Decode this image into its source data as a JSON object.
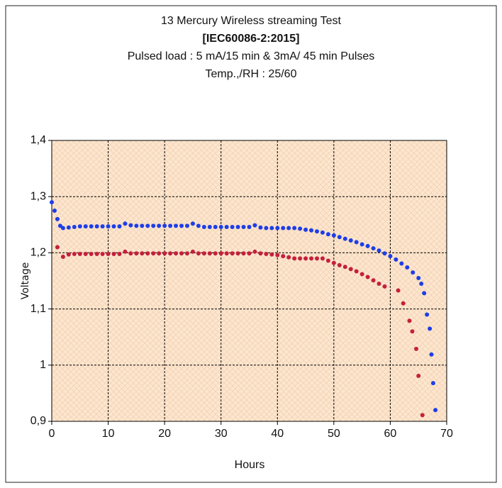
{
  "chart_data": {
    "type": "scatter",
    "title": "13 Mercury Wireless streaming Test",
    "subtitle": [
      "[IEC60086-2:2015]",
      "Pulsed load  : 5 mA/15  min  & 3mA/  45 min  Pulses",
      "Temp.,/RH  : 25/60"
    ],
    "xlabel": "Hours",
    "ylabel": "Voltage",
    "xlim": [
      0,
      70
    ],
    "xticks": [
      0,
      10,
      20,
      30,
      40,
      50,
      60,
      70
    ],
    "ylim": [
      0.9,
      1.4
    ],
    "yticks": [
      {
        "value": 0.9,
        "label": "0,9"
      },
      1,
      {
        "value": 1.1,
        "label": "1,1"
      },
      {
        "value": 1.2,
        "label": "1,2"
      },
      {
        "value": 1.3,
        "label": "1,3"
      },
      {
        "value": 1.4,
        "label": "1,4"
      }
    ],
    "grid": true,
    "series": [
      {
        "color": "#1e3ee6",
        "x": [
          0,
          0.5,
          1,
          1.5,
          2,
          3,
          4,
          5,
          6,
          7,
          8,
          9,
          10,
          11,
          12,
          13,
          14,
          15,
          16,
          17,
          18,
          19,
          20,
          21,
          22,
          23,
          24,
          25,
          26,
          27,
          28,
          29,
          30,
          31,
          32,
          33,
          34,
          35,
          36,
          37,
          38,
          39,
          40,
          41,
          42,
          43,
          44,
          45,
          46,
          47,
          48,
          49,
          50,
          51,
          52,
          53,
          54,
          55,
          56,
          57,
          58,
          59,
          60,
          61,
          62,
          63,
          64,
          65,
          65.5,
          66,
          66.5,
          67,
          67.3,
          67.6,
          68
        ],
        "values": [
          1.29,
          1.275,
          1.26,
          1.248,
          1.244,
          1.245,
          1.246,
          1.247,
          1.247,
          1.247,
          1.247,
          1.247,
          1.247,
          1.247,
          1.247,
          1.252,
          1.249,
          1.248,
          1.248,
          1.248,
          1.248,
          1.248,
          1.248,
          1.248,
          1.248,
          1.248,
          1.248,
          1.252,
          1.248,
          1.246,
          1.246,
          1.246,
          1.246,
          1.246,
          1.246,
          1.246,
          1.246,
          1.246,
          1.249,
          1.245,
          1.244,
          1.244,
          1.244,
          1.244,
          1.244,
          1.244,
          1.243,
          1.241,
          1.24,
          1.238,
          1.236,
          1.233,
          1.231,
          1.228,
          1.225,
          1.222,
          1.219,
          1.215,
          1.212,
          1.208,
          1.204,
          1.199,
          1.194,
          1.188,
          1.181,
          1.174,
          1.165,
          1.155,
          1.145,
          1.128,
          1.09,
          1.065,
          1.019,
          0.968,
          0.92
        ]
      },
      {
        "color": "#c4203c",
        "x": [
          1,
          2,
          3,
          4,
          5,
          6,
          7,
          8,
          9,
          10,
          11,
          12,
          13,
          14,
          15,
          16,
          17,
          18,
          19,
          20,
          21,
          22,
          23,
          24,
          25,
          26,
          27,
          28,
          29,
          30,
          31,
          32,
          33,
          34,
          35,
          36,
          37,
          38,
          39,
          40,
          41,
          42,
          43,
          44,
          45,
          46,
          47,
          48,
          49,
          50,
          51,
          52,
          53,
          54,
          55,
          56,
          57,
          58,
          59,
          61.4,
          62.3,
          63.4,
          63.9,
          64.6,
          65,
          65.7
        ],
        "values": [
          1.21,
          1.193,
          1.197,
          1.198,
          1.198,
          1.198,
          1.198,
          1.198,
          1.198,
          1.198,
          1.198,
          1.198,
          1.202,
          1.199,
          1.199,
          1.199,
          1.199,
          1.199,
          1.199,
          1.199,
          1.199,
          1.199,
          1.199,
          1.199,
          1.202,
          1.199,
          1.199,
          1.199,
          1.199,
          1.199,
          1.199,
          1.199,
          1.199,
          1.199,
          1.199,
          1.202,
          1.199,
          1.198,
          1.197,
          1.196,
          1.194,
          1.192,
          1.19,
          1.19,
          1.19,
          1.19,
          1.19,
          1.19,
          1.186,
          1.182,
          1.178,
          1.175,
          1.171,
          1.167,
          1.162,
          1.157,
          1.151,
          1.145,
          1.14,
          1.133,
          1.11,
          1.079,
          1.06,
          1.029,
          0.981,
          0.911
        ]
      }
    ]
  }
}
